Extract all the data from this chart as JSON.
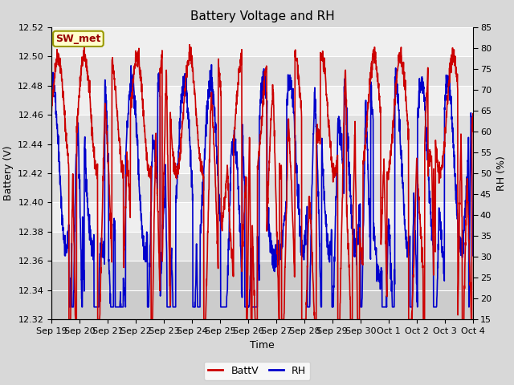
{
  "title": "Battery Voltage and RH",
  "xlabel": "Time",
  "ylabel_left": "Battery (V)",
  "ylabel_right": "RH (%)",
  "ylim_left": [
    12.32,
    12.52
  ],
  "ylim_right": [
    15,
    85
  ],
  "yticks_left": [
    12.32,
    12.34,
    12.36,
    12.38,
    12.4,
    12.42,
    12.44,
    12.46,
    12.48,
    12.5,
    12.52
  ],
  "yticks_right": [
    15,
    20,
    25,
    30,
    35,
    40,
    45,
    50,
    55,
    60,
    65,
    70,
    75,
    80,
    85
  ],
  "xtick_labels": [
    "Sep 19",
    "Sep 20",
    "Sep 21",
    "Sep 22",
    "Sep 23",
    "Sep 24",
    "Sep 25",
    "Sep 26",
    "Sep 27",
    "Sep 28",
    "Sep 29",
    "Sep 30",
    "Oct 1",
    "Oct 2",
    "Oct 3",
    "Oct 4"
  ],
  "color_batt": "#cc0000",
  "color_rh": "#0000cc",
  "legend_batt": "BattV",
  "legend_rh": "RH",
  "annotation_text": "SW_met",
  "bg_color": "#d8d8d8",
  "plot_bg_light": "#e8e8e8",
  "plot_bg_dark": "#c8c8c8",
  "grid_color": "#ffffff",
  "title_fontsize": 11,
  "axis_fontsize": 9,
  "tick_fontsize": 8,
  "legend_fontsize": 9,
  "linewidth": 1.2,
  "num_points": 2304,
  "seed": 42
}
